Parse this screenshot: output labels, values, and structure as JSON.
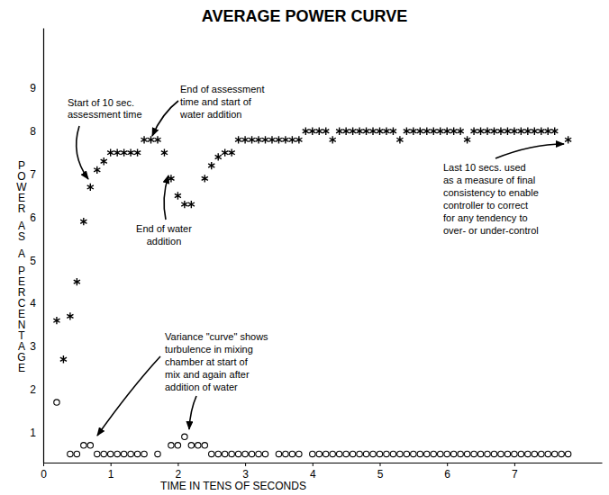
{
  "chart_data": {
    "type": "scatter",
    "title": "AVERAGE POWER CURVE",
    "xlabel": "TIME IN TENS OF SECONDS",
    "ylabel": "POWER AS A PERCENTAGE",
    "xlim": [
      0,
      8.3
    ],
    "ylim": [
      0.3,
      10.4
    ],
    "xticks": [
      0,
      1,
      2,
      3,
      4,
      5,
      6,
      7
    ],
    "yticks": [
      1,
      2,
      3,
      4,
      5,
      6,
      7,
      8,
      9
    ],
    "grid": false,
    "series": [
      {
        "color": "#000000",
        "marker": "asterisk",
        "x": [
          0.2,
          0.3,
          0.4,
          0.5,
          0.6,
          0.7,
          0.8,
          0.9,
          1.0,
          1.1,
          1.2,
          1.3,
          1.4,
          1.5,
          1.6,
          1.7,
          1.8,
          1.9,
          2.0,
          2.1,
          2.2,
          2.4,
          2.5,
          2.6,
          2.7,
          2.8,
          2.9,
          3.0,
          3.1,
          3.2,
          3.3,
          3.4,
          3.5,
          3.6,
          3.7,
          3.8,
          3.9,
          4.0,
          4.1,
          4.2,
          4.3,
          4.4,
          4.5,
          4.6,
          4.7,
          4.8,
          4.9,
          5.0,
          5.1,
          5.2,
          5.3,
          5.4,
          5.5,
          5.6,
          5.7,
          5.8,
          5.9,
          6.0,
          6.1,
          6.2,
          6.3,
          6.4,
          6.5,
          6.6,
          6.7,
          6.8,
          6.9,
          7.0,
          7.1,
          7.2,
          7.3,
          7.4,
          7.5,
          7.6,
          7.8
        ],
        "values": [
          3.6,
          2.7,
          3.7,
          4.5,
          5.9,
          6.7,
          7.1,
          7.3,
          7.5,
          7.5,
          7.5,
          7.5,
          7.5,
          7.8,
          7.8,
          7.8,
          7.5,
          6.9,
          6.5,
          6.3,
          6.3,
          6.9,
          7.2,
          7.4,
          7.5,
          7.5,
          7.8,
          7.8,
          7.8,
          7.8,
          7.8,
          7.8,
          7.8,
          7.8,
          7.8,
          7.8,
          8.0,
          8.0,
          8.0,
          8.0,
          7.8,
          8.0,
          8.0,
          8.0,
          8.0,
          8.0,
          8.0,
          8.0,
          8.0,
          8.0,
          7.8,
          8.0,
          8.0,
          8.0,
          8.0,
          8.0,
          8.0,
          8.0,
          8.0,
          8.0,
          7.8,
          8.0,
          8.0,
          8.0,
          8.0,
          8.0,
          8.0,
          8.0,
          8.0,
          8.0,
          8.0,
          8.0,
          8.0,
          8.0,
          7.8
        ]
      },
      {
        "color": "#000000",
        "marker": "circle",
        "x": [
          0.2,
          0.4,
          0.5,
          0.6,
          0.7,
          0.8,
          0.9,
          1.0,
          1.1,
          1.2,
          1.3,
          1.4,
          1.5,
          1.7,
          1.9,
          2.0,
          2.1,
          2.2,
          2.3,
          2.4,
          2.5,
          2.6,
          2.7,
          2.8,
          2.9,
          3.0,
          3.1,
          3.2,
          3.3,
          3.5,
          3.6,
          3.7,
          3.8,
          4.0,
          4.1,
          4.2,
          4.3,
          4.4,
          4.5,
          4.6,
          4.7,
          4.8,
          4.9,
          5.0,
          5.1,
          5.2,
          5.3,
          5.4,
          5.5,
          5.6,
          5.7,
          5.8,
          5.9,
          6.0,
          6.1,
          6.2,
          6.3,
          6.4,
          6.5,
          6.6,
          6.7,
          6.8,
          6.9,
          7.0,
          7.1,
          7.2,
          7.3,
          7.4,
          7.5,
          7.6,
          7.7,
          7.8
        ],
        "values": [
          1.7,
          0.5,
          0.5,
          0.7,
          0.7,
          0.5,
          0.5,
          0.5,
          0.5,
          0.5,
          0.5,
          0.5,
          0.5,
          0.5,
          0.7,
          0.7,
          0.9,
          0.7,
          0.7,
          0.7,
          0.5,
          0.5,
          0.5,
          0.5,
          0.5,
          0.5,
          0.5,
          0.5,
          0.5,
          0.5,
          0.5,
          0.5,
          0.5,
          0.5,
          0.5,
          0.5,
          0.5,
          0.5,
          0.5,
          0.5,
          0.5,
          0.5,
          0.5,
          0.5,
          0.5,
          0.5,
          0.5,
          0.5,
          0.5,
          0.5,
          0.5,
          0.5,
          0.5,
          0.5,
          0.5,
          0.5,
          0.5,
          0.5,
          0.5,
          0.5,
          0.5,
          0.5,
          0.5,
          0.5,
          0.5,
          0.5,
          0.5,
          0.5,
          0.5,
          0.5,
          0.5,
          0.5
        ]
      }
    ],
    "annotations": [
      [
        "Start of 10 sec.",
        "assessment time"
      ],
      [
        "End of assessment",
        "time and start of",
        "water addition"
      ],
      [
        "End of water",
        "addition"
      ],
      [
        "Last 10 secs. used",
        "as a measure of final",
        "consistency to enable",
        "controller to correct",
        "for any tendency to",
        "over- or under-control"
      ],
      [
        "Variance \"curve\" shows",
        "turbulence in mixing",
        "chamber at start of",
        "mix and again after",
        "addition of water"
      ]
    ]
  }
}
